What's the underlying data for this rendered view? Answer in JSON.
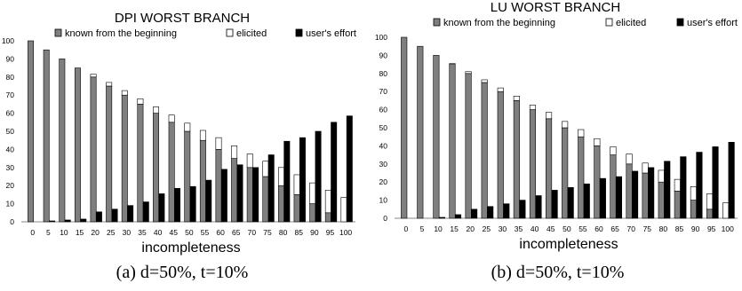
{
  "chart_data": [
    {
      "type": "bar",
      "stacked": true,
      "title": "DPI WORST BRANCH",
      "xlabel": "incompleteness",
      "ylabel": "",
      "ylim": [
        0,
        100
      ],
      "yticks": [
        0,
        10,
        20,
        30,
        40,
        50,
        60,
        70,
        80,
        90,
        100
      ],
      "grid": false,
      "legend": "top",
      "caption": "(a) d=50%, t=10%",
      "categories": [
        "0",
        "5",
        "10",
        "15",
        "20",
        "25",
        "30",
        "35",
        "40",
        "45",
        "50",
        "55",
        "60",
        "65",
        "70",
        "75",
        "80",
        "85",
        "90",
        "95",
        "100"
      ],
      "series": [
        {
          "name": "known from the beginning",
          "color": "#7f7f7f",
          "stack": "a",
          "values": [
            100,
            95,
            90,
            85,
            80,
            75,
            70,
            65,
            60,
            55,
            50,
            45,
            40,
            35,
            30,
            25,
            20,
            15,
            10,
            5,
            0
          ]
        },
        {
          "name": "elicited",
          "color": "#ffffff",
          "stack": "a",
          "values": [
            0,
            0,
            0,
            0,
            1.5,
            2,
            2.5,
            3,
            3.5,
            4,
            4.5,
            5.5,
            6.5,
            7,
            7.5,
            8.5,
            10,
            11,
            11.5,
            12.5,
            13.5
          ]
        },
        {
          "name": "user's effort",
          "color": "#000000",
          "stack": "b",
          "values": [
            0,
            0.5,
            1,
            1.5,
            5.5,
            7,
            9,
            11,
            15.5,
            18.5,
            19.5,
            23,
            29,
            31.5,
            30,
            37,
            44.5,
            46.5,
            50,
            55,
            58.5
          ]
        }
      ]
    },
    {
      "type": "bar",
      "stacked": true,
      "title": "LU WORST BRANCH",
      "xlabel": "incompleteness",
      "ylabel": "",
      "ylim": [
        0,
        100
      ],
      "yticks": [
        0,
        10,
        20,
        30,
        40,
        50,
        60,
        70,
        80,
        90,
        100
      ],
      "grid": false,
      "legend": "top",
      "caption": "(b) d=50%, t=10%",
      "categories": [
        "0",
        "5",
        "10",
        "15",
        "20",
        "25",
        "30",
        "35",
        "40",
        "45",
        "50",
        "55",
        "60",
        "65",
        "70",
        "75",
        "80",
        "85",
        "90",
        "95",
        "100"
      ],
      "series": [
        {
          "name": "known from the beginning",
          "color": "#7f7f7f",
          "stack": "a",
          "values": [
            100,
            95,
            90,
            85,
            80,
            75,
            70,
            65,
            60,
            55,
            50,
            45,
            40,
            35,
            30,
            25,
            20,
            15,
            10,
            5,
            0
          ]
        },
        {
          "name": "elicited",
          "color": "#ffffff",
          "stack": "a",
          "values": [
            0,
            0,
            0,
            0.5,
            1,
            1.5,
            2,
            2.5,
            2.5,
            3.5,
            3.5,
            4,
            4,
            4.5,
            5.5,
            5.5,
            6.5,
            6.5,
            7.5,
            8.5,
            8.5
          ]
        },
        {
          "name": "user's effort",
          "color": "#000000",
          "stack": "b",
          "values": [
            0,
            0,
            0.5,
            2,
            5,
            6.5,
            8,
            10,
            12.5,
            15.5,
            17,
            19,
            22,
            23,
            26,
            28,
            31.5,
            34,
            36.5,
            39.5,
            42
          ]
        }
      ]
    }
  ]
}
